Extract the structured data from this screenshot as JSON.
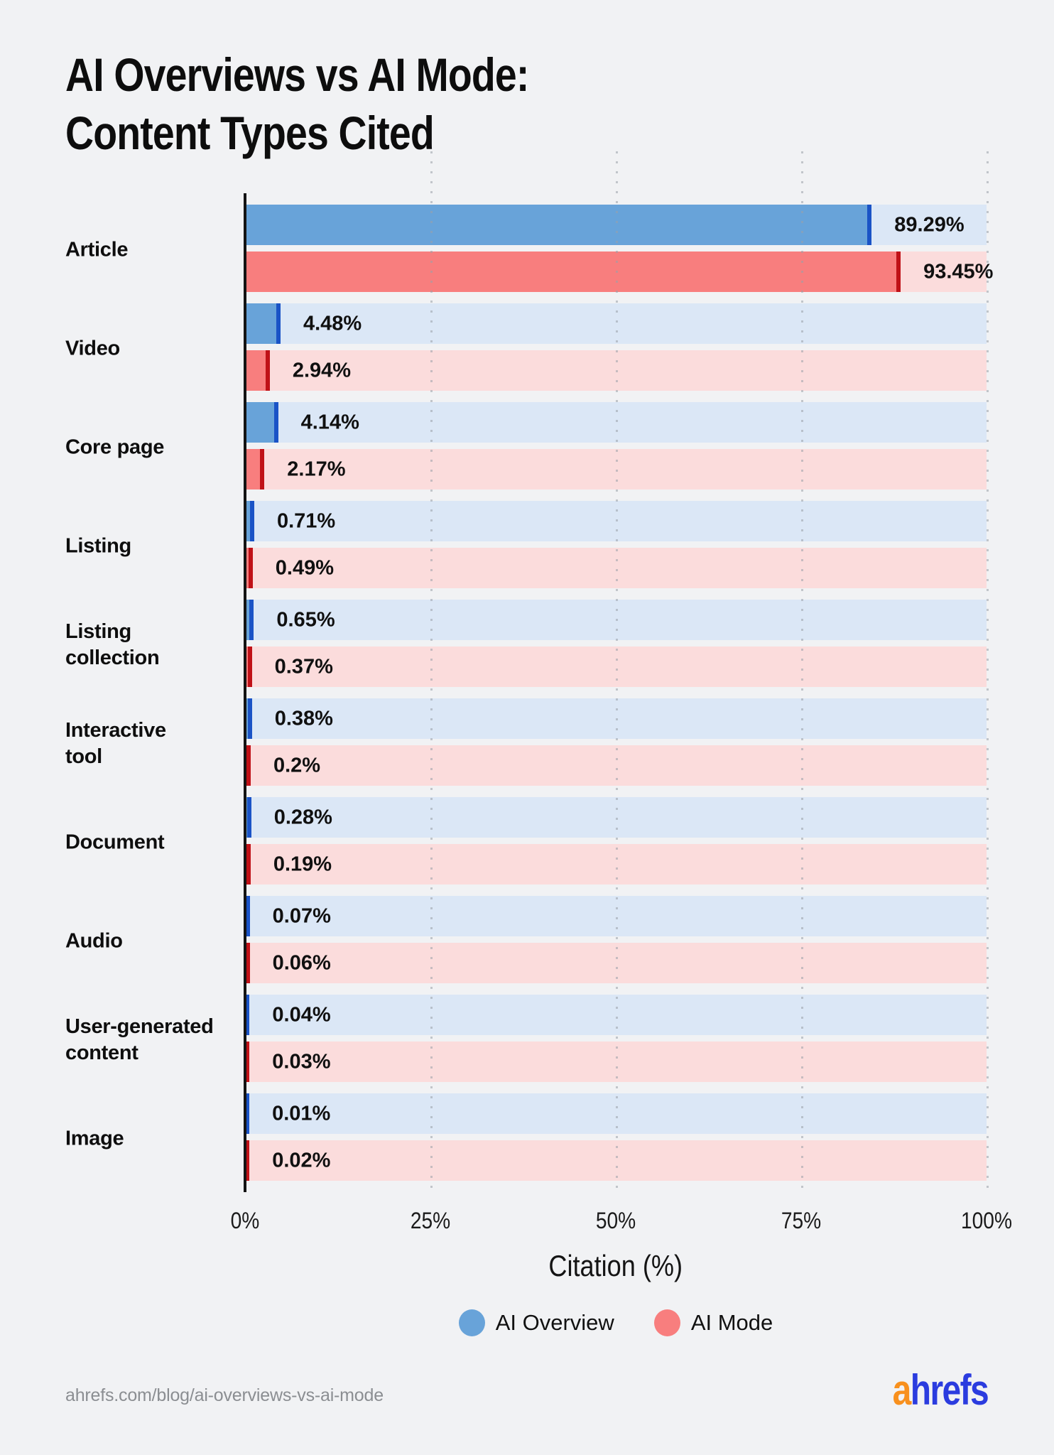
{
  "title": {
    "line1": "AI Overviews vs AI Mode:",
    "line2": "Content Types Cited"
  },
  "chart_data": {
    "type": "bar",
    "orientation": "horizontal",
    "title": "AI Overviews vs AI Mode: Content Types Cited",
    "xlabel": "Citation (%)",
    "xlim": [
      0,
      100
    ],
    "x_ticks": [
      "0%",
      "25%",
      "50%",
      "75%",
      "100%"
    ],
    "grid": "dotted-vertical",
    "legend_position": "bottom-center",
    "categories": [
      "Article",
      "Video",
      "Core page",
      "Listing",
      "Listing collection",
      "Interactive tool",
      "Document",
      "Audio",
      "User-generated content",
      "Image"
    ],
    "category_label_lines": [
      [
        "Article"
      ],
      [
        "Video"
      ],
      [
        "Core page"
      ],
      [
        "Listing"
      ],
      [
        "Listing",
        "collection"
      ],
      [
        "Interactive",
        "tool"
      ],
      [
        "Document"
      ],
      [
        "Audio"
      ],
      [
        "User-generated",
        "content"
      ],
      [
        "Image"
      ]
    ],
    "series": [
      {
        "name": "AI Overview",
        "values": [
          89.29,
          4.48,
          4.14,
          0.71,
          0.65,
          0.38,
          0.28,
          0.07,
          0.04,
          0.01
        ],
        "labels": [
          "89.29%",
          "4.48%",
          "4.14%",
          "0.71%",
          "0.65%",
          "0.38%",
          "0.28%",
          "0.07%",
          "0.04%",
          "0.01%"
        ]
      },
      {
        "name": "AI Mode",
        "values": [
          93.45,
          2.94,
          2.17,
          0.49,
          0.37,
          0.2,
          0.19,
          0.06,
          0.03,
          0.02
        ],
        "labels": [
          "93.45%",
          "2.94%",
          "2.17%",
          "0.49%",
          "0.37%",
          "0.2%",
          "0.19%",
          "0.06%",
          "0.03%",
          "0.02%"
        ]
      }
    ]
  },
  "colors": {
    "background": "#F1F2F4",
    "title": "#0D0D0D",
    "ai_overview_fill": "#68A3D9",
    "ai_overview_cap": "#1A53C6",
    "ai_overview_track": "#DBE7F6",
    "ai_mode_fill": "#F87E7E",
    "ai_mode_cap": "#C01117",
    "ai_mode_track": "#FBDCDC",
    "axis": "#131313",
    "gridline": "#9AA0A8",
    "tick_text": "#1B1B1B",
    "footer_text": "#8B8E92",
    "logo_orange": "#F8901D",
    "logo_blue": "#2B3CDF"
  },
  "legend": {
    "items": [
      {
        "label": "AI Overview",
        "color_key": "ai_overview_fill"
      },
      {
        "label": "AI Mode",
        "color_key": "ai_mode_fill"
      }
    ]
  },
  "footer": {
    "source_url": "ahrefs.com/blog/ai-overviews-vs-ai-mode",
    "logo_a": "a",
    "logo_rest": "hrefs"
  }
}
